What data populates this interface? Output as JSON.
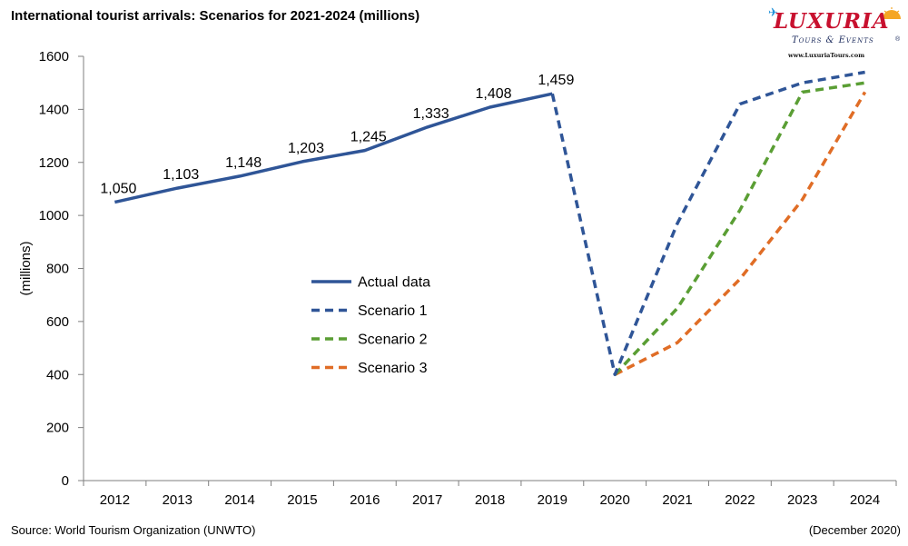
{
  "title": "International tourist arrivals: Scenarios for 2021-2024 (millions)",
  "source": "Source: World Tourism Organization (UNWTO)",
  "date_note": "(December 2020)",
  "logo": {
    "name": "LUXURIA",
    "tagline": "Tours & Events",
    "url": "www.LuxuriaTours.com",
    "reg": "®",
    "colors": {
      "primary": "#c8102e",
      "secondary": "#1b2a5c"
    }
  },
  "chart_data": {
    "type": "line",
    "title": "International tourist arrivals: Scenarios for 2021-2024 (millions)",
    "xlabel": "",
    "ylabel": "(millions)",
    "ylim": [
      0,
      1600
    ],
    "yticks": [
      0,
      200,
      400,
      600,
      800,
      1000,
      1200,
      1400,
      1600
    ],
    "categories": [
      "2012",
      "2013",
      "2014",
      "2015",
      "2016",
      "2017",
      "2018",
      "2019",
      "2020",
      "2021",
      "2022",
      "2023",
      "2024"
    ],
    "grid": false,
    "legend_position": "center-left",
    "series": [
      {
        "name": "Actual data",
        "color": "#2f5597",
        "dash": "solid",
        "values": [
          1050,
          1103,
          1148,
          1203,
          1245,
          1333,
          1408,
          1459,
          null,
          null,
          null,
          null,
          null
        ],
        "labels": [
          "1,050",
          "1,103",
          "1,148",
          "1,203",
          "1,245",
          "1,333",
          "1,408",
          "1,459",
          null,
          null,
          null,
          null,
          null
        ]
      },
      {
        "name": "Scenario 1",
        "color": "#2f5597",
        "dash": "dashed",
        "values": [
          null,
          null,
          null,
          null,
          null,
          null,
          null,
          1459,
          400,
          970,
          1420,
          1500,
          1540
        ]
      },
      {
        "name": "Scenario 2",
        "color": "#5a9e34",
        "dash": "dashed",
        "values": [
          null,
          null,
          null,
          null,
          null,
          null,
          null,
          null,
          400,
          650,
          1020,
          1465,
          1500
        ]
      },
      {
        "name": "Scenario 3",
        "color": "#e06d26",
        "dash": "dashed",
        "values": [
          null,
          null,
          null,
          null,
          null,
          null,
          null,
          null,
          400,
          520,
          760,
          1060,
          1465
        ]
      }
    ]
  }
}
